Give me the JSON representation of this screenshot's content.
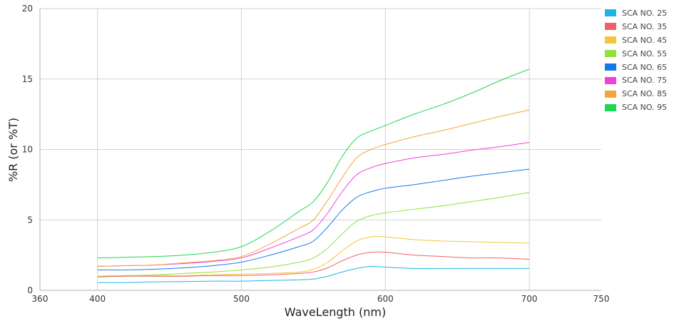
{
  "chart_data": {
    "type": "line",
    "title": "",
    "xlabel": "WaveLength (nm)",
    "ylabel": "%R (or %T)",
    "xlim": [
      360,
      750
    ],
    "ylim": [
      0,
      20
    ],
    "x_ticks": [
      360,
      400,
      500,
      600,
      700,
      750
    ],
    "y_ticks": [
      0,
      5,
      10,
      15,
      20
    ],
    "x_gridlines": [
      400,
      500,
      600,
      700
    ],
    "y_gridlines": [
      5,
      10,
      15
    ],
    "grid": true,
    "legend_position": "right",
    "x": [
      400,
      420,
      440,
      460,
      480,
      500,
      520,
      540,
      550,
      560,
      570,
      580,
      590,
      600,
      620,
      640,
      660,
      680,
      700
    ],
    "series": [
      {
        "name": "SCA NO. 25",
        "color": "#1EB4E6",
        "values": [
          0.55,
          0.55,
          0.6,
          0.62,
          0.65,
          0.65,
          0.7,
          0.75,
          0.8,
          1.0,
          1.3,
          1.55,
          1.7,
          1.65,
          1.55,
          1.55,
          1.55,
          1.55,
          1.55
        ]
      },
      {
        "name": "SCA NO. 35",
        "color": "#F0606A",
        "values": [
          0.95,
          1.0,
          1.0,
          1.0,
          1.05,
          1.05,
          1.1,
          1.2,
          1.3,
          1.6,
          2.1,
          2.5,
          2.7,
          2.7,
          2.5,
          2.4,
          2.3,
          2.3,
          2.2
        ]
      },
      {
        "name": "SCA NO. 45",
        "color": "#F8C43C",
        "values": [
          1.0,
          1.05,
          1.05,
          1.05,
          1.1,
          1.15,
          1.2,
          1.3,
          1.5,
          2.0,
          2.8,
          3.5,
          3.8,
          3.8,
          3.6,
          3.5,
          3.45,
          3.4,
          3.35
        ]
      },
      {
        "name": "SCA NO. 55",
        "color": "#90E23C",
        "values": [
          1.0,
          1.05,
          1.1,
          1.2,
          1.3,
          1.45,
          1.65,
          2.0,
          2.3,
          3.0,
          4.0,
          4.9,
          5.3,
          5.5,
          5.75,
          6.0,
          6.3,
          6.6,
          6.95
        ]
      },
      {
        "name": "SCA NO. 65",
        "color": "#1878E8",
        "values": [
          1.45,
          1.45,
          1.5,
          1.6,
          1.75,
          2.0,
          2.5,
          3.1,
          3.5,
          4.5,
          5.7,
          6.6,
          7.0,
          7.25,
          7.5,
          7.8,
          8.1,
          8.35,
          8.6
        ]
      },
      {
        "name": "SCA NO. 75",
        "color": "#F040DC",
        "values": [
          1.7,
          1.75,
          1.8,
          1.9,
          2.05,
          2.3,
          3.0,
          3.8,
          4.3,
          5.5,
          7.0,
          8.2,
          8.7,
          9.0,
          9.4,
          9.65,
          9.95,
          10.2,
          10.5
        ]
      },
      {
        "name": "SCA NO. 85",
        "color": "#F4A43C",
        "values": [
          1.7,
          1.75,
          1.8,
          1.95,
          2.1,
          2.4,
          3.3,
          4.4,
          5.0,
          6.4,
          8.0,
          9.4,
          10.0,
          10.35,
          10.9,
          11.35,
          11.85,
          12.35,
          12.8
        ]
      },
      {
        "name": "SCA NO. 95",
        "color": "#1ED850",
        "values": [
          2.3,
          2.35,
          2.4,
          2.5,
          2.7,
          3.1,
          4.2,
          5.6,
          6.3,
          7.7,
          9.5,
          10.8,
          11.3,
          11.7,
          12.5,
          13.2,
          14.0,
          14.9,
          15.7
        ]
      }
    ],
    "colors": {
      "gridline": "#D2D2D2",
      "axis": "#B0B0B0",
      "background": "#FFFFFF"
    }
  }
}
